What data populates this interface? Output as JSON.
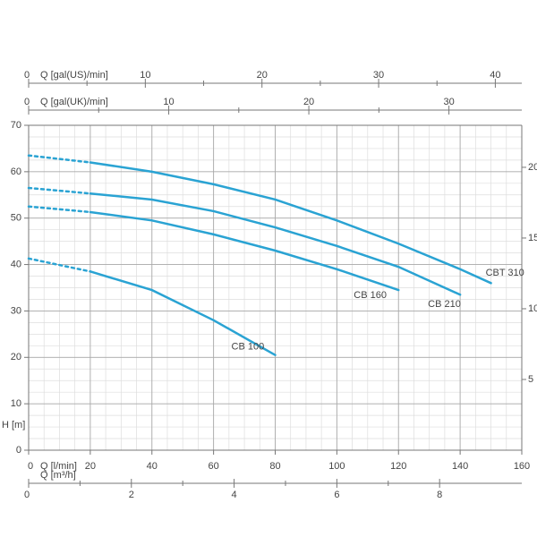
{
  "chart_data": {
    "type": "line",
    "xlabel": "Q [l/min]",
    "ylabel": "H [m]",
    "xlim": [
      0,
      160
    ],
    "xticks": [
      0,
      20,
      40,
      60,
      80,
      100,
      120,
      140,
      160
    ],
    "ylim": [
      0,
      70
    ],
    "yticks": [
      0,
      10,
      20,
      30,
      40,
      50,
      60,
      70
    ],
    "y2lim": [
      0,
      22.97
    ],
    "y2ticks": [
      5,
      10,
      15,
      20
    ],
    "grid": true,
    "extra_x_axes": [
      {
        "label": "Q [gal(US)/min]",
        "lim": [
          0,
          42.27
        ],
        "ticks": [
          0,
          10,
          20,
          30,
          40
        ],
        "position": "top"
      },
      {
        "label": "Q [gal(UK)/min]",
        "lim": [
          0,
          35.2
        ],
        "ticks": [
          0,
          10,
          20,
          30
        ],
        "position": "top"
      },
      {
        "label": "Q [m³/h]",
        "lim": [
          0,
          9.6
        ],
        "ticks": [
          0,
          2,
          4,
          6,
          8
        ],
        "position": "bottom"
      }
    ],
    "x": [
      0,
      20,
      40,
      60,
      80,
      100,
      120,
      140,
      150
    ],
    "series": [
      {
        "name": "CBT 310",
        "color": "#2aa3d3",
        "values": [
          63.5,
          62,
          60,
          57.3,
          54,
          49.5,
          44.5,
          39,
          36
        ]
      },
      {
        "name": "CB 210",
        "color": "#2aa3d3",
        "values": [
          56.5,
          55.3,
          54,
          51.5,
          48,
          44,
          39.5,
          33.5,
          null
        ]
      },
      {
        "name": "CB 160",
        "color": "#2aa3d3",
        "values": [
          52.5,
          51.3,
          49.5,
          46.5,
          43,
          39,
          34.5,
          null,
          null
        ]
      },
      {
        "name": "CB 100",
        "color": "#2aa3d3",
        "values": [
          41.3,
          38.5,
          34.5,
          28,
          20.5,
          null,
          null,
          null,
          null
        ]
      }
    ]
  }
}
